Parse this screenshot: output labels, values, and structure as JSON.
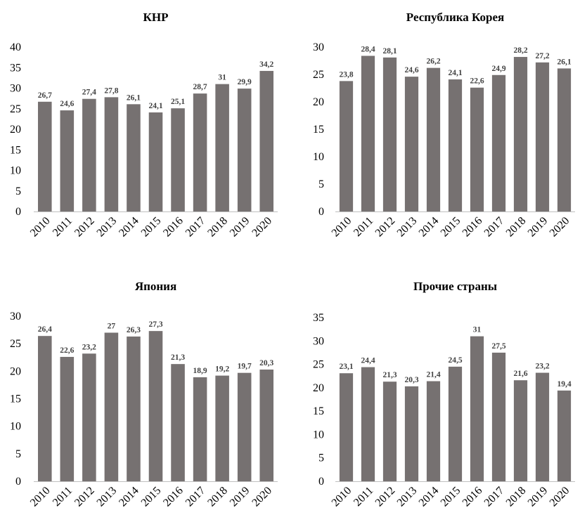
{
  "colors": {
    "bar": "#767171",
    "axis": "#bfbfbf",
    "text": "#000000",
    "label": "#404040"
  },
  "chart_data": [
    {
      "type": "bar",
      "title": "КНР",
      "categories": [
        "2010",
        "2011",
        "2012",
        "2013",
        "2014",
        "2015",
        "2016",
        "2017",
        "2018",
        "2019",
        "2020"
      ],
      "values": [
        26.7,
        24.6,
        27.4,
        27.8,
        26.1,
        24.1,
        25.1,
        28.7,
        31,
        29.9,
        34.2
      ],
      "data_labels": [
        "26,7",
        "24,6",
        "27,4",
        "27,8",
        "26,1",
        "24,1",
        "25,1",
        "28,7",
        "31",
        "29,9",
        "34,2"
      ],
      "ylim": [
        0,
        40
      ],
      "yticks": [
        "0",
        "5",
        "10",
        "15",
        "20",
        "25",
        "30",
        "35",
        "40"
      ],
      "grid": false
    },
    {
      "type": "bar",
      "title": "Республика Корея",
      "categories": [
        "2010",
        "2011",
        "2012",
        "2013",
        "2014",
        "2015",
        "2016",
        "2017",
        "2018",
        "2019",
        "2020"
      ],
      "values": [
        23.8,
        28.4,
        28.1,
        24.6,
        26.2,
        24.1,
        22.6,
        24.9,
        28.2,
        27.2,
        26.1
      ],
      "data_labels": [
        "23,8",
        "28,4",
        "28,1",
        "24,6",
        "26,2",
        "24,1",
        "22,6",
        "24,9",
        "28,2",
        "27,2",
        "26,1"
      ],
      "ylim": [
        0,
        30
      ],
      "yticks": [
        "0",
        "5",
        "10",
        "15",
        "20",
        "25",
        "30"
      ],
      "grid": false
    },
    {
      "type": "bar",
      "title": "Япония",
      "categories": [
        "2010",
        "2011",
        "2012",
        "2013",
        "2014",
        "2015",
        "2016",
        "2017",
        "2018",
        "2019",
        "2020"
      ],
      "values": [
        26.4,
        22.6,
        23.2,
        27,
        26.3,
        27.3,
        21.3,
        18.9,
        19.2,
        19.7,
        20.3
      ],
      "data_labels": [
        "26,4",
        "22,6",
        "23,2",
        "27",
        "26,3",
        "27,3",
        "21,3",
        "18,9",
        "19,2",
        "19,7",
        "20,3"
      ],
      "ylim": [
        0,
        30
      ],
      "yticks": [
        "0",
        "5",
        "10",
        "15",
        "20",
        "25",
        "30"
      ],
      "grid": false
    },
    {
      "type": "bar",
      "title": "Прочие страны",
      "categories": [
        "2010",
        "2011",
        "2012",
        "2013",
        "2014",
        "2015",
        "2016",
        "2017",
        "2018",
        "2019",
        "2020"
      ],
      "values": [
        23.1,
        24.4,
        21.3,
        20.3,
        21.4,
        24.5,
        31,
        27.5,
        21.6,
        23.2,
        19.4
      ],
      "data_labels": [
        "23,1",
        "24,4",
        "21,3",
        "20,3",
        "21,4",
        "24,5",
        "31",
        "27,5",
        "21,6",
        "23,2",
        "19,4"
      ],
      "ylim": [
        0,
        35
      ],
      "yticks": [
        "0",
        "5",
        "10",
        "15",
        "20",
        "25",
        "30",
        "35"
      ],
      "grid": false
    }
  ]
}
